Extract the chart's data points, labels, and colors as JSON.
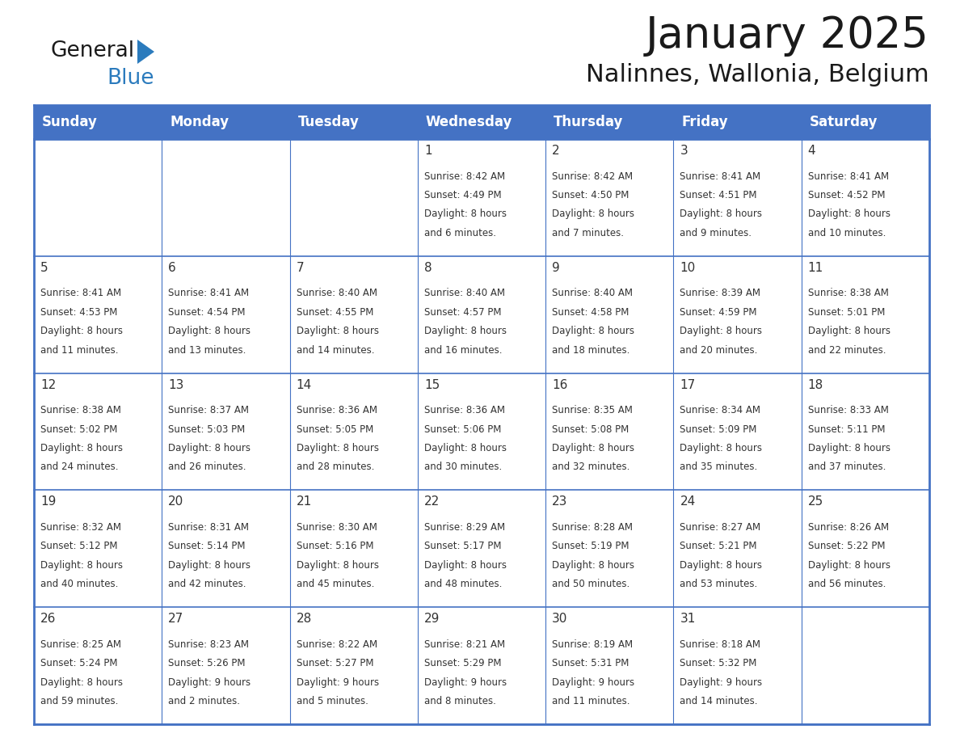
{
  "title": "January 2025",
  "subtitle": "Nalinnes, Wallonia, Belgium",
  "header_bg": "#4472C4",
  "header_text_color": "#FFFFFF",
  "cell_bg_light": "#F2F4F8",
  "cell_bg_white": "#FFFFFF",
  "border_color": "#4472C4",
  "row_line_color": "#4472C4",
  "title_color": "#1a1a1a",
  "subtitle_color": "#1a1a1a",
  "cell_text_color": "#333333",
  "logo_black": "#1a1a1a",
  "logo_blue": "#2B7BBD",
  "triangle_color": "#2B7BBD",
  "day_names": [
    "Sunday",
    "Monday",
    "Tuesday",
    "Wednesday",
    "Thursday",
    "Friday",
    "Saturday"
  ],
  "days": [
    {
      "day": "1",
      "col": 3,
      "row": 0,
      "lines": [
        "Sunrise: 8:42 AM",
        "Sunset: 4:49 PM",
        "Daylight: 8 hours",
        "and 6 minutes."
      ]
    },
    {
      "day": "2",
      "col": 4,
      "row": 0,
      "lines": [
        "Sunrise: 8:42 AM",
        "Sunset: 4:50 PM",
        "Daylight: 8 hours",
        "and 7 minutes."
      ]
    },
    {
      "day": "3",
      "col": 5,
      "row": 0,
      "lines": [
        "Sunrise: 8:41 AM",
        "Sunset: 4:51 PM",
        "Daylight: 8 hours",
        "and 9 minutes."
      ]
    },
    {
      "day": "4",
      "col": 6,
      "row": 0,
      "lines": [
        "Sunrise: 8:41 AM",
        "Sunset: 4:52 PM",
        "Daylight: 8 hours",
        "and 10 minutes."
      ]
    },
    {
      "day": "5",
      "col": 0,
      "row": 1,
      "lines": [
        "Sunrise: 8:41 AM",
        "Sunset: 4:53 PM",
        "Daylight: 8 hours",
        "and 11 minutes."
      ]
    },
    {
      "day": "6",
      "col": 1,
      "row": 1,
      "lines": [
        "Sunrise: 8:41 AM",
        "Sunset: 4:54 PM",
        "Daylight: 8 hours",
        "and 13 minutes."
      ]
    },
    {
      "day": "7",
      "col": 2,
      "row": 1,
      "lines": [
        "Sunrise: 8:40 AM",
        "Sunset: 4:55 PM",
        "Daylight: 8 hours",
        "and 14 minutes."
      ]
    },
    {
      "day": "8",
      "col": 3,
      "row": 1,
      "lines": [
        "Sunrise: 8:40 AM",
        "Sunset: 4:57 PM",
        "Daylight: 8 hours",
        "and 16 minutes."
      ]
    },
    {
      "day": "9",
      "col": 4,
      "row": 1,
      "lines": [
        "Sunrise: 8:40 AM",
        "Sunset: 4:58 PM",
        "Daylight: 8 hours",
        "and 18 minutes."
      ]
    },
    {
      "day": "10",
      "col": 5,
      "row": 1,
      "lines": [
        "Sunrise: 8:39 AM",
        "Sunset: 4:59 PM",
        "Daylight: 8 hours",
        "and 20 minutes."
      ]
    },
    {
      "day": "11",
      "col": 6,
      "row": 1,
      "lines": [
        "Sunrise: 8:38 AM",
        "Sunset: 5:01 PM",
        "Daylight: 8 hours",
        "and 22 minutes."
      ]
    },
    {
      "day": "12",
      "col": 0,
      "row": 2,
      "lines": [
        "Sunrise: 8:38 AM",
        "Sunset: 5:02 PM",
        "Daylight: 8 hours",
        "and 24 minutes."
      ]
    },
    {
      "day": "13",
      "col": 1,
      "row": 2,
      "lines": [
        "Sunrise: 8:37 AM",
        "Sunset: 5:03 PM",
        "Daylight: 8 hours",
        "and 26 minutes."
      ]
    },
    {
      "day": "14",
      "col": 2,
      "row": 2,
      "lines": [
        "Sunrise: 8:36 AM",
        "Sunset: 5:05 PM",
        "Daylight: 8 hours",
        "and 28 minutes."
      ]
    },
    {
      "day": "15",
      "col": 3,
      "row": 2,
      "lines": [
        "Sunrise: 8:36 AM",
        "Sunset: 5:06 PM",
        "Daylight: 8 hours",
        "and 30 minutes."
      ]
    },
    {
      "day": "16",
      "col": 4,
      "row": 2,
      "lines": [
        "Sunrise: 8:35 AM",
        "Sunset: 5:08 PM",
        "Daylight: 8 hours",
        "and 32 minutes."
      ]
    },
    {
      "day": "17",
      "col": 5,
      "row": 2,
      "lines": [
        "Sunrise: 8:34 AM",
        "Sunset: 5:09 PM",
        "Daylight: 8 hours",
        "and 35 minutes."
      ]
    },
    {
      "day": "18",
      "col": 6,
      "row": 2,
      "lines": [
        "Sunrise: 8:33 AM",
        "Sunset: 5:11 PM",
        "Daylight: 8 hours",
        "and 37 minutes."
      ]
    },
    {
      "day": "19",
      "col": 0,
      "row": 3,
      "lines": [
        "Sunrise: 8:32 AM",
        "Sunset: 5:12 PM",
        "Daylight: 8 hours",
        "and 40 minutes."
      ]
    },
    {
      "day": "20",
      "col": 1,
      "row": 3,
      "lines": [
        "Sunrise: 8:31 AM",
        "Sunset: 5:14 PM",
        "Daylight: 8 hours",
        "and 42 minutes."
      ]
    },
    {
      "day": "21",
      "col": 2,
      "row": 3,
      "lines": [
        "Sunrise: 8:30 AM",
        "Sunset: 5:16 PM",
        "Daylight: 8 hours",
        "and 45 minutes."
      ]
    },
    {
      "day": "22",
      "col": 3,
      "row": 3,
      "lines": [
        "Sunrise: 8:29 AM",
        "Sunset: 5:17 PM",
        "Daylight: 8 hours",
        "and 48 minutes."
      ]
    },
    {
      "day": "23",
      "col": 4,
      "row": 3,
      "lines": [
        "Sunrise: 8:28 AM",
        "Sunset: 5:19 PM",
        "Daylight: 8 hours",
        "and 50 minutes."
      ]
    },
    {
      "day": "24",
      "col": 5,
      "row": 3,
      "lines": [
        "Sunrise: 8:27 AM",
        "Sunset: 5:21 PM",
        "Daylight: 8 hours",
        "and 53 minutes."
      ]
    },
    {
      "day": "25",
      "col": 6,
      "row": 3,
      "lines": [
        "Sunrise: 8:26 AM",
        "Sunset: 5:22 PM",
        "Daylight: 8 hours",
        "and 56 minutes."
      ]
    },
    {
      "day": "26",
      "col": 0,
      "row": 4,
      "lines": [
        "Sunrise: 8:25 AM",
        "Sunset: 5:24 PM",
        "Daylight: 8 hours",
        "and 59 minutes."
      ]
    },
    {
      "day": "27",
      "col": 1,
      "row": 4,
      "lines": [
        "Sunrise: 8:23 AM",
        "Sunset: 5:26 PM",
        "Daylight: 9 hours",
        "and 2 minutes."
      ]
    },
    {
      "day": "28",
      "col": 2,
      "row": 4,
      "lines": [
        "Sunrise: 8:22 AM",
        "Sunset: 5:27 PM",
        "Daylight: 9 hours",
        "and 5 minutes."
      ]
    },
    {
      "day": "29",
      "col": 3,
      "row": 4,
      "lines": [
        "Sunrise: 8:21 AM",
        "Sunset: 5:29 PM",
        "Daylight: 9 hours",
        "and 8 minutes."
      ]
    },
    {
      "day": "30",
      "col": 4,
      "row": 4,
      "lines": [
        "Sunrise: 8:19 AM",
        "Sunset: 5:31 PM",
        "Daylight: 9 hours",
        "and 11 minutes."
      ]
    },
    {
      "day": "31",
      "col": 5,
      "row": 4,
      "lines": [
        "Sunrise: 8:18 AM",
        "Sunset: 5:32 PM",
        "Daylight: 9 hours",
        "and 14 minutes."
      ]
    }
  ]
}
